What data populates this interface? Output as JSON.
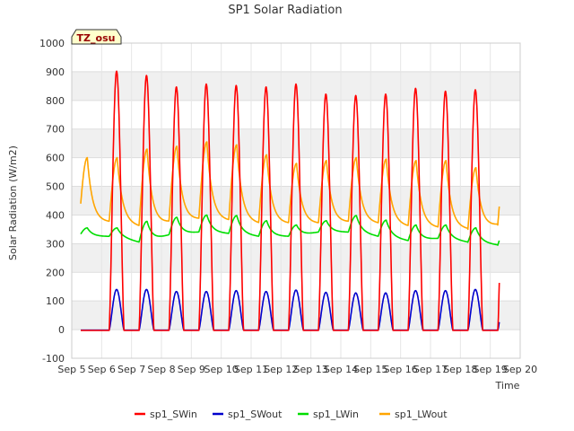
{
  "chart_data": {
    "type": "line",
    "title": "SP1 Solar Radiation",
    "xlabel": "Time",
    "ylabel": "Solar Radiation (W/m2)",
    "site_label": "TZ_osu",
    "xlim": [
      5,
      20
    ],
    "ylim": [
      -100,
      1000
    ],
    "yticks": [
      -100,
      0,
      100,
      200,
      300,
      400,
      500,
      600,
      700,
      800,
      900,
      1000
    ],
    "xticks": [
      {
        "v": 5,
        "label": "Sep 5"
      },
      {
        "v": 6,
        "label": "Sep 6"
      },
      {
        "v": 7,
        "label": "Sep 7"
      },
      {
        "v": 8,
        "label": "Sep 8"
      },
      {
        "v": 9,
        "label": "Sep 9"
      },
      {
        "v": 10,
        "label": "Sep 10"
      },
      {
        "v": 11,
        "label": "Sep 11"
      },
      {
        "v": 12,
        "label": "Sep 12"
      },
      {
        "v": 13,
        "label": "Sep 13"
      },
      {
        "v": 14,
        "label": "Sep 14"
      },
      {
        "v": 15,
        "label": "Sep 15"
      },
      {
        "v": 16,
        "label": "Sep 16"
      },
      {
        "v": 17,
        "label": "Sep 17"
      },
      {
        "v": 18,
        "label": "Sep 18"
      },
      {
        "v": 19,
        "label": "Sep 19"
      },
      {
        "v": 20,
        "label": "Sep 20"
      }
    ],
    "grid": true,
    "legend_position": "bottom",
    "start_day": 5.3,
    "end_day": 19.3,
    "series": [
      {
        "name": "sp1_SWin",
        "color": "#ff0000",
        "daily_peak": [
          905,
          890,
          850,
          860,
          855,
          850,
          860,
          825,
          820,
          825,
          845,
          835,
          840,
          860
        ]
      },
      {
        "name": "sp1_SWout",
        "color": "#0000cc",
        "daily_peak": [
          142,
          142,
          135,
          135,
          138,
          135,
          140,
          132,
          130,
          130,
          138,
          138,
          142,
          145
        ]
      },
      {
        "name": "sp1_LWin",
        "color": "#00dd00",
        "daily_peak": [
          355,
          378,
          392,
          400,
          398,
          380,
          365,
          380,
          398,
          382,
          365,
          365,
          355,
          350
        ],
        "daily_base": [
          325,
          305,
          330,
          340,
          335,
          325,
          325,
          340,
          340,
          325,
          310,
          318,
          305,
          295
        ]
      },
      {
        "name": "sp1_LWout",
        "color": "#ffa500",
        "daily_peak": [
          600,
          630,
          640,
          655,
          645,
          610,
          580,
          590,
          600,
          595,
          590,
          590,
          565,
          590
        ],
        "daily_base": [
          375,
          360,
          375,
          385,
          380,
          370,
          370,
          370,
          375,
          370,
          360,
          355,
          350,
          365
        ]
      }
    ]
  }
}
